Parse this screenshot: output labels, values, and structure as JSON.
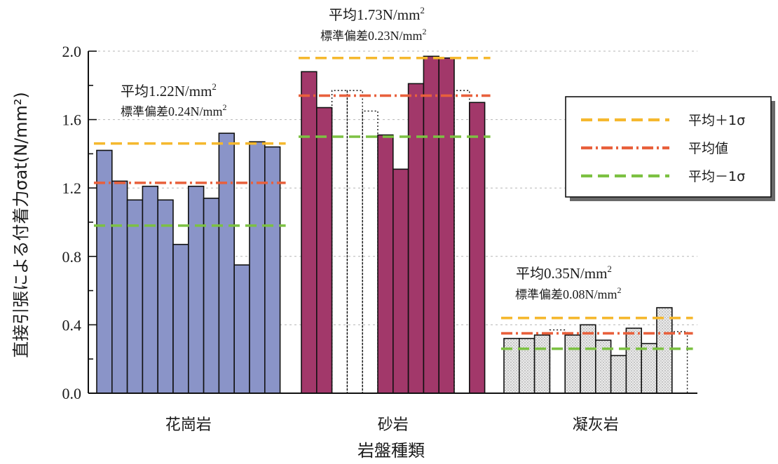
{
  "chart_data": {
    "type": "bar",
    "xlabel": "岩盤種類",
    "ylabel": "直接引張による付着力σat(N/mm²)",
    "ylim": [
      0,
      2.0
    ],
    "yticks": [
      "0.0",
      "0.4",
      "0.8",
      "1.2",
      "1.6",
      "2.0"
    ],
    "grid": "horizontal-dotted",
    "legend_position": "right",
    "legend": [
      {
        "key": "upper",
        "label": "平均＋1σ",
        "color": "#f5b82e",
        "style": "dashed"
      },
      {
        "key": "mean",
        "label": "平均値",
        "color": "#e8603c",
        "style": "dashdot"
      },
      {
        "key": "lower",
        "label": "平均－1σ",
        "color": "#7cc142",
        "style": "dashed"
      }
    ],
    "groups": [
      {
        "name": "花崗岩",
        "fill": "#8a94c8",
        "pattern": "solid",
        "values": [
          1.42,
          1.24,
          1.13,
          1.21,
          1.13,
          0.87,
          1.21,
          1.14,
          1.52,
          0.75,
          1.47,
          1.44
        ],
        "dotted_values": [],
        "mean": 1.23,
        "upper": 1.46,
        "lower": 0.98,
        "mean_label_prefix": "平均",
        "mean_label_value": "1.22N/mm",
        "std_label_prefix": "標準偏差",
        "std_label_value": "0.24N/mm",
        "unit_sup": "2"
      },
      {
        "name": "砂岩",
        "fill": "#a2386a",
        "pattern": "solid",
        "values": [
          1.88,
          1.67,
          null,
          null,
          null,
          1.51,
          1.31,
          1.81,
          1.97,
          1.96,
          null,
          1.7
        ],
        "dotted_values": [
          null,
          null,
          1.77,
          1.77,
          1.65,
          null,
          null,
          null,
          null,
          null,
          1.77,
          null
        ],
        "mean": 1.74,
        "upper": 1.96,
        "lower": 1.5,
        "mean_label_prefix": "平均",
        "mean_label_value": "1.73N/mm",
        "std_label_prefix": "標準偏差",
        "std_label_value": "0.23N/mm",
        "unit_sup": "2"
      },
      {
        "name": "凝灰岩",
        "fill": "#e6e6e6",
        "pattern": "dots",
        "values": [
          0.32,
          0.32,
          0.34,
          null,
          0.34,
          0.4,
          0.31,
          0.22,
          0.38,
          0.29,
          0.5,
          null
        ],
        "dotted_values": [
          null,
          null,
          null,
          0.37,
          null,
          null,
          null,
          null,
          null,
          null,
          null,
          0.36
        ],
        "mean": 0.35,
        "upper": 0.44,
        "lower": 0.26,
        "mean_label_prefix": "平均",
        "mean_label_value": "0.35N/mm",
        "std_label_prefix": "標準偏差",
        "std_label_value": "0.08N/mm",
        "unit_sup": "2"
      }
    ]
  }
}
